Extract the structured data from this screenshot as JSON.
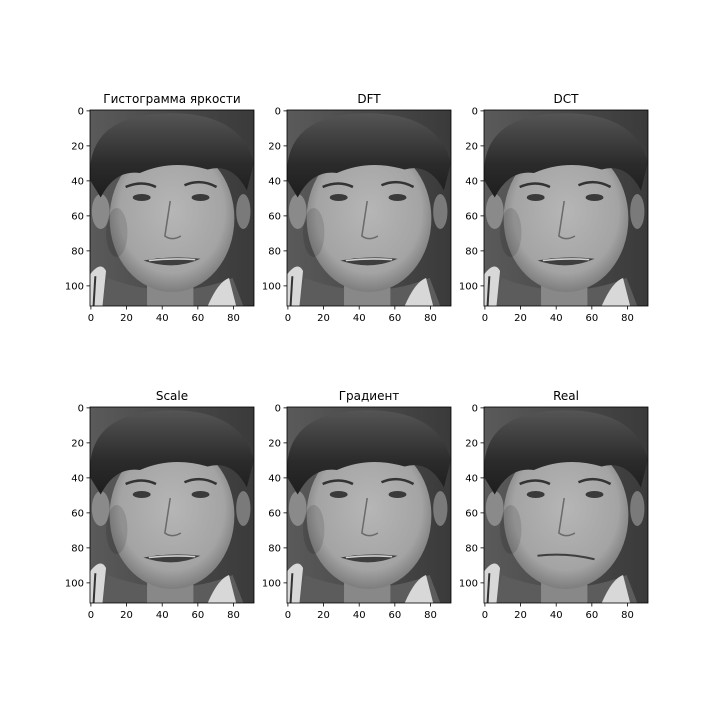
{
  "chart_data": [
    {
      "type": "image",
      "title": "Гистограмма яркости",
      "image_shape": [
        112,
        92
      ],
      "x_ticks": [
        0,
        20,
        40,
        60,
        80
      ],
      "y_ticks": [
        0,
        20,
        40,
        60,
        80,
        100
      ],
      "colormap": "gray",
      "variant": "smile"
    },
    {
      "type": "image",
      "title": "DFT",
      "image_shape": [
        112,
        92
      ],
      "x_ticks": [
        0,
        20,
        40,
        60,
        80
      ],
      "y_ticks": [
        0,
        20,
        40,
        60,
        80,
        100
      ],
      "colormap": "gray",
      "variant": "smile"
    },
    {
      "type": "image",
      "title": "DCT",
      "image_shape": [
        112,
        92
      ],
      "x_ticks": [
        0,
        20,
        40,
        60,
        80
      ],
      "y_ticks": [
        0,
        20,
        40,
        60,
        80,
        100
      ],
      "colormap": "gray",
      "variant": "smile"
    },
    {
      "type": "image",
      "title": "Scale",
      "image_shape": [
        112,
        92
      ],
      "x_ticks": [
        0,
        20,
        40,
        60,
        80
      ],
      "y_ticks": [
        0,
        20,
        40,
        60,
        80,
        100
      ],
      "colormap": "gray",
      "variant": "smile"
    },
    {
      "type": "image",
      "title": "Градиент",
      "image_shape": [
        112,
        92
      ],
      "x_ticks": [
        0,
        20,
        40,
        60,
        80
      ],
      "y_ticks": [
        0,
        20,
        40,
        60,
        80,
        100
      ],
      "colormap": "gray",
      "variant": "smile"
    },
    {
      "type": "image",
      "title": "Real",
      "image_shape": [
        112,
        92
      ],
      "x_ticks": [
        0,
        20,
        40,
        60,
        80
      ],
      "y_ticks": [
        0,
        20,
        40,
        60,
        80,
        100
      ],
      "colormap": "gray",
      "variant": "neutral"
    }
  ],
  "colors": {
    "background": "#ffffff",
    "hair": "#2b2b2b",
    "skin": "#a4a4a4",
    "backdrop": "#4a4a4a",
    "shirt": "#d8d8d8"
  }
}
